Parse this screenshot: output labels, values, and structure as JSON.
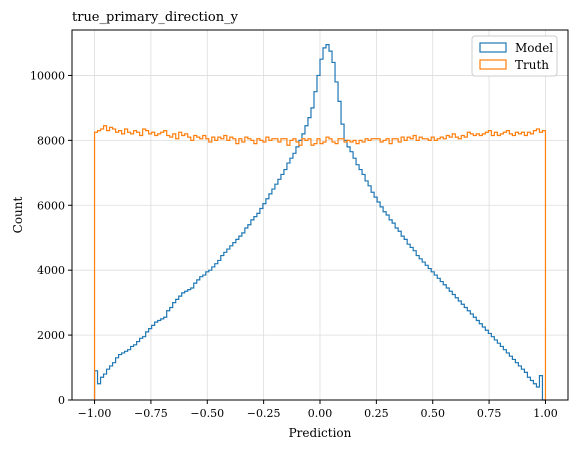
{
  "chart_data": {
    "type": "histogram-step",
    "title": "true_primary_direction_y",
    "xlabel": "Prediction",
    "ylabel": "Count",
    "xlim": [
      -1.1,
      1.1
    ],
    "ylim": [
      0,
      11400
    ],
    "xticks": [
      -1.0,
      -0.75,
      -0.5,
      -0.25,
      0.0,
      0.25,
      0.5,
      0.75,
      1.0
    ],
    "xtick_labels": [
      "−1.00",
      "−0.75",
      "−0.50",
      "−0.25",
      "0.00",
      "0.25",
      "0.50",
      "0.75",
      "1.00"
    ],
    "yticks": [
      0,
      2000,
      4000,
      6000,
      8000,
      10000
    ],
    "ytick_labels": [
      "0",
      "2000",
      "4000",
      "6000",
      "8000",
      "10000"
    ],
    "grid": true,
    "legend_position": "top-right",
    "bin_range": [
      -1.0,
      1.0
    ],
    "series": [
      {
        "name": "Model",
        "color": "#1f77b4",
        "values": [
          900,
          500,
          700,
          800,
          950,
          1050,
          1150,
          1300,
          1400,
          1450,
          1500,
          1550,
          1650,
          1700,
          1800,
          1900,
          1950,
          2100,
          2200,
          2300,
          2400,
          2450,
          2500,
          2550,
          2750,
          2850,
          3000,
          3100,
          3200,
          3300,
          3350,
          3400,
          3450,
          3600,
          3700,
          3800,
          3850,
          3950,
          4000,
          4100,
          4200,
          4300,
          4450,
          4550,
          4650,
          4750,
          4850,
          4950,
          5050,
          5150,
          5300,
          5400,
          5550,
          5650,
          5750,
          5900,
          6050,
          6200,
          6350,
          6500,
          6650,
          6800,
          6950,
          7100,
          7300,
          7450,
          7600,
          7800,
          8000,
          8200,
          8450,
          8700,
          9000,
          9500,
          10000,
          10500,
          10850,
          10950,
          10750,
          10400,
          9800,
          9200,
          8500,
          8000,
          7800,
          7650,
          7450,
          7250,
          7100,
          6950,
          6750,
          6600,
          6400,
          6250,
          6100,
          5950,
          5800,
          5700,
          5550,
          5450,
          5300,
          5200,
          5050,
          4950,
          4800,
          4700,
          4600,
          4450,
          4350,
          4250,
          4150,
          4050,
          3950,
          3850,
          3750,
          3650,
          3550,
          3450,
          3350,
          3250,
          3150,
          3050,
          2950,
          2850,
          2750,
          2650,
          2550,
          2450,
          2350,
          2250,
          2150,
          2050,
          1950,
          1850,
          1750,
          1650,
          1550,
          1450,
          1350,
          1250,
          1150,
          1050,
          950,
          850,
          700,
          600,
          500,
          400,
          750,
          0
        ]
      },
      {
        "name": "Truth",
        "color": "#ff7f0e",
        "values": [
          8250,
          8300,
          8350,
          8450,
          8300,
          8400,
          8350,
          8250,
          8300,
          8200,
          8350,
          8250,
          8200,
          8300,
          8250,
          8150,
          8350,
          8300,
          8200,
          8250,
          8150,
          8200,
          8250,
          8300,
          8150,
          8100,
          8200,
          8050,
          8250,
          8150,
          8200,
          8100,
          8000,
          8150,
          8100,
          8050,
          8150,
          8050,
          7950,
          8100,
          8000,
          8100,
          8050,
          8150,
          8000,
          8100,
          8050,
          7900,
          8050,
          7950,
          8100,
          8050,
          8000,
          7900,
          8050,
          8000,
          7950,
          8100,
          8000,
          8050,
          8050,
          7950,
          8050,
          8050,
          7850,
          8000,
          8050,
          7950,
          7850,
          8050,
          8000,
          8050,
          7850,
          7900,
          8050,
          7900,
          7950,
          8100,
          8050,
          7950,
          7900,
          8050,
          8050,
          7950,
          8000,
          7950,
          8000,
          7900,
          8000,
          7950,
          8050,
          8000,
          8050,
          8050,
          8050,
          7950,
          8000,
          8050,
          7900,
          8050,
          8050,
          7950,
          8100,
          8000,
          8100,
          8050,
          8150,
          8000,
          8100,
          8050,
          8050,
          8000,
          8100,
          8000,
          8050,
          8100,
          8050,
          8150,
          8100,
          8200,
          8100,
          8050,
          8150,
          8100,
          8250,
          8200,
          8150,
          8200,
          8150,
          8200,
          8250,
          8300,
          8150,
          8250,
          8150,
          8200,
          8250,
          8300,
          8200,
          8150,
          8250,
          8200,
          8250,
          8150,
          8250,
          8200,
          8300,
          8350,
          8250,
          8300
        ]
      }
    ]
  }
}
